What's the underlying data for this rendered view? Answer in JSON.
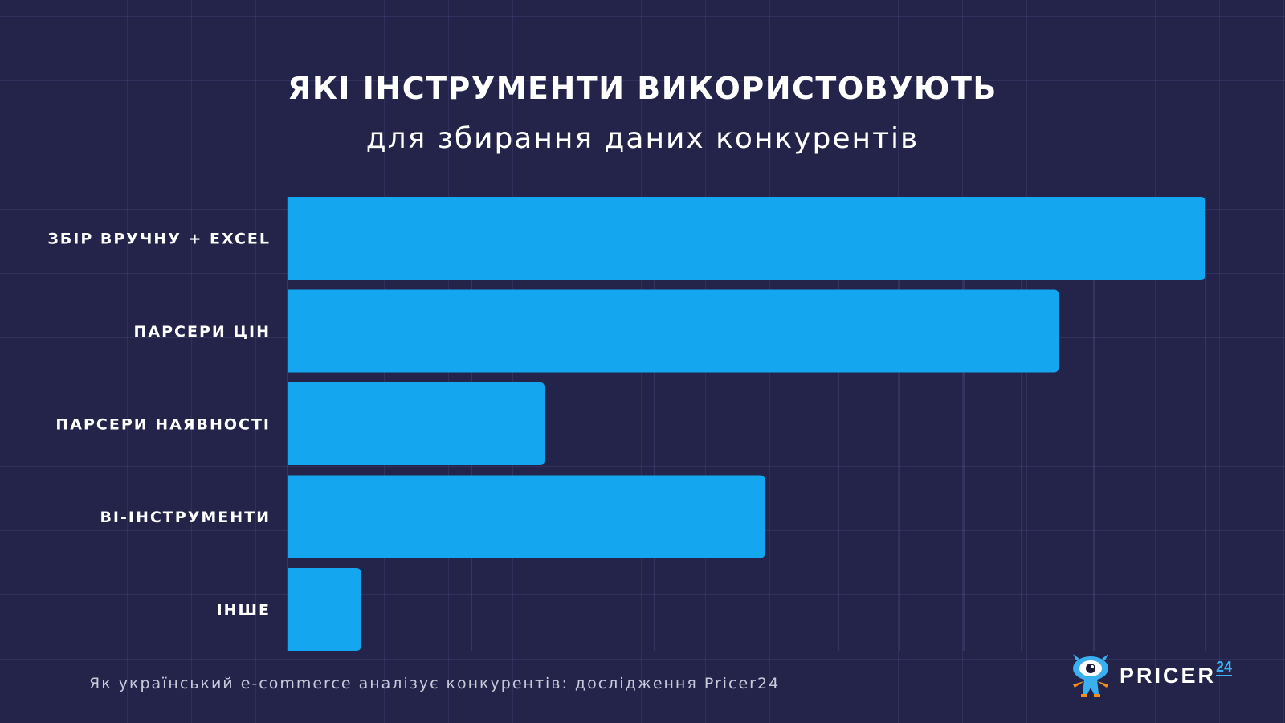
{
  "chart_data": {
    "type": "bar",
    "orientation": "horizontal",
    "title": "ЯКІ ІНСТРУМЕНТИ ВИКОРИСТОВУЮТЬ",
    "subtitle": "для збирання даних конкурентів",
    "categories": [
      "ЗБІР ВРУЧНУ + EXCEL",
      "ПАРСЕРИ ЦІН",
      "ПАРСЕРИ НАЯВНОСТІ",
      "BI-ІНСТРУМЕНТИ",
      "ІНШЕ"
    ],
    "values": [
      100,
      84,
      28,
      52,
      8
    ],
    "xlim": [
      0,
      100
    ],
    "grid": true,
    "legend": "none",
    "bar_color": "#14a6ee"
  },
  "footer": {
    "source": "Як український e-commerce аналізує конкурентів: дослідження Pricer24"
  },
  "logo": {
    "text": "PRICER",
    "number": "24",
    "icon": "eye-mascot-icon"
  },
  "colors": {
    "background": "#24244a",
    "bar": "#14a6ee",
    "text": "#ffffff",
    "accent": "#3bb0f0",
    "mascot_orange": "#f58a1f"
  }
}
